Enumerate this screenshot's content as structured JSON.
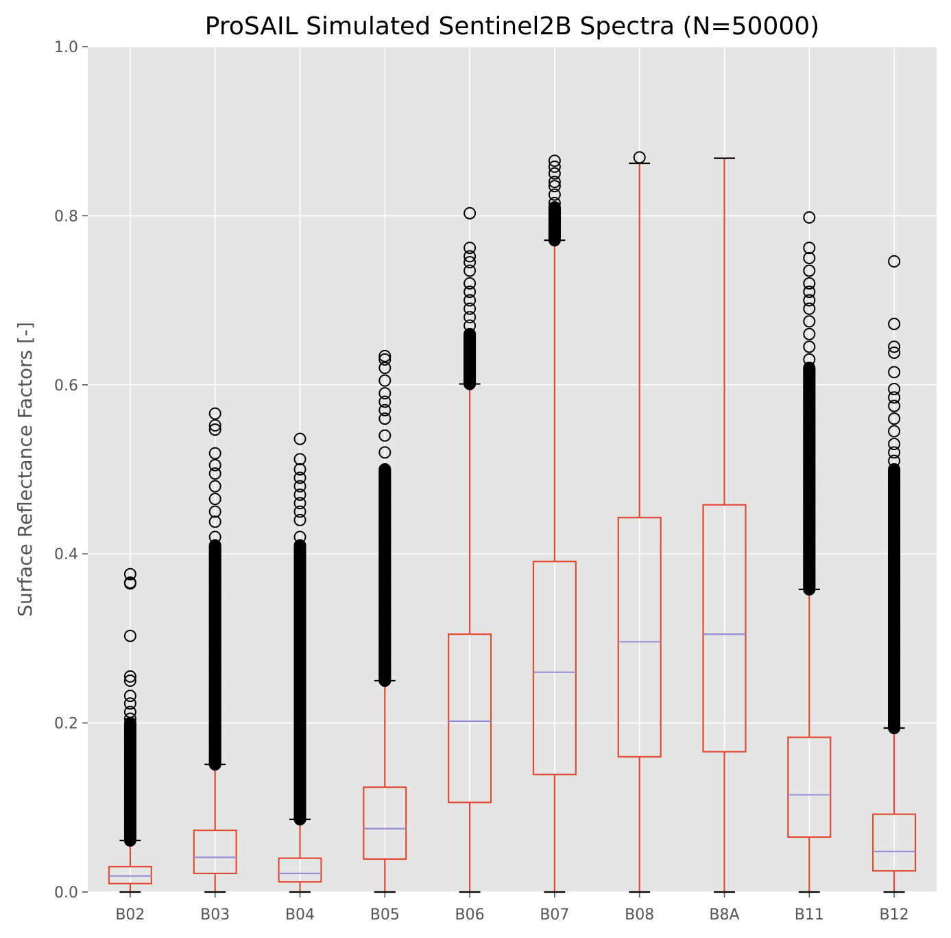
{
  "chart_data": {
    "type": "box",
    "title": "ProSAIL Simulated Sentinel2B Spectra (N=50000)",
    "xlabel": "",
    "ylabel": "Surface Reflectance Factors [-]",
    "ylim": [
      0.0,
      1.0
    ],
    "yticks": [
      "0.0",
      "0.2",
      "0.4",
      "0.6",
      "0.8",
      "1.0"
    ],
    "grid": true,
    "categories": [
      "B02",
      "B03",
      "B04",
      "B05",
      "B06",
      "B07",
      "B08",
      "B8A",
      "B11",
      "B12"
    ],
    "boxes": [
      {
        "name": "B02",
        "whisker_low": 0.0,
        "q1": 0.01,
        "median": 0.019,
        "q3": 0.03,
        "whisker_high": 0.061,
        "outliers_dense": [
          0.061,
          0.2
        ],
        "outliers": [
          0.205,
          0.213,
          0.223,
          0.232,
          0.25,
          0.255,
          0.303,
          0.365,
          0.366,
          0.376
        ]
      },
      {
        "name": "B03",
        "whisker_low": 0.0,
        "q1": 0.022,
        "median": 0.041,
        "q3": 0.073,
        "whisker_high": 0.151,
        "outliers_dense": [
          0.151,
          0.41
        ],
        "outliers": [
          0.42,
          0.438,
          0.45,
          0.465,
          0.48,
          0.495,
          0.505,
          0.519,
          0.547,
          0.552,
          0.566
        ]
      },
      {
        "name": "B04",
        "whisker_low": 0.0,
        "q1": 0.012,
        "median": 0.022,
        "q3": 0.04,
        "whisker_high": 0.086,
        "outliers_dense": [
          0.086,
          0.41
        ],
        "outliers": [
          0.42,
          0.44,
          0.45,
          0.46,
          0.47,
          0.48,
          0.49,
          0.5,
          0.512,
          0.536
        ]
      },
      {
        "name": "B05",
        "whisker_low": 0.0,
        "q1": 0.039,
        "median": 0.075,
        "q3": 0.124,
        "whisker_high": 0.25,
        "outliers_dense": [
          0.25,
          0.5
        ],
        "outliers": [
          0.52,
          0.54,
          0.56,
          0.57,
          0.58,
          0.59,
          0.605,
          0.62,
          0.63,
          0.634
        ]
      },
      {
        "name": "B06",
        "whisker_low": 0.0,
        "q1": 0.106,
        "median": 0.202,
        "q3": 0.305,
        "whisker_high": 0.601,
        "outliers_dense": [
          0.601,
          0.66
        ],
        "outliers": [
          0.67,
          0.68,
          0.69,
          0.7,
          0.71,
          0.72,
          0.735,
          0.745,
          0.752,
          0.762,
          0.803
        ]
      },
      {
        "name": "B07",
        "whisker_low": 0.0,
        "q1": 0.139,
        "median": 0.26,
        "q3": 0.391,
        "whisker_high": 0.771,
        "outliers_dense": [
          0.771,
          0.81
        ],
        "outliers": [
          0.815,
          0.825,
          0.835,
          0.84,
          0.85,
          0.858,
          0.865
        ]
      },
      {
        "name": "B08",
        "whisker_low": 0.0,
        "q1": 0.16,
        "median": 0.296,
        "q3": 0.443,
        "whisker_high": 0.862,
        "outliers_dense": [],
        "outliers": [
          0.869
        ]
      },
      {
        "name": "B8A",
        "whisker_low": 0.0,
        "q1": 0.166,
        "median": 0.305,
        "q3": 0.458,
        "whisker_high": 0.868,
        "outliers_dense": [],
        "outliers": []
      },
      {
        "name": "B11",
        "whisker_low": 0.0,
        "q1": 0.065,
        "median": 0.115,
        "q3": 0.183,
        "whisker_high": 0.358,
        "outliers_dense": [
          0.358,
          0.62
        ],
        "outliers": [
          0.63,
          0.645,
          0.66,
          0.675,
          0.69,
          0.7,
          0.71,
          0.72,
          0.735,
          0.75,
          0.762,
          0.798
        ]
      },
      {
        "name": "B12",
        "whisker_low": 0.0,
        "q1": 0.025,
        "median": 0.048,
        "q3": 0.092,
        "whisker_high": 0.194,
        "outliers_dense": [
          0.194,
          0.5
        ],
        "outliers": [
          0.51,
          0.52,
          0.53,
          0.545,
          0.56,
          0.575,
          0.585,
          0.595,
          0.615,
          0.638,
          0.645,
          0.672,
          0.746
        ]
      }
    ],
    "colors": {
      "plot_background": "#e5e5e5",
      "grid": "#ffffff",
      "box": "#e24a33",
      "median": "#988ed5",
      "flier": "#000000",
      "cap": "#000000",
      "text": "#555555",
      "title": "#000000"
    }
  }
}
